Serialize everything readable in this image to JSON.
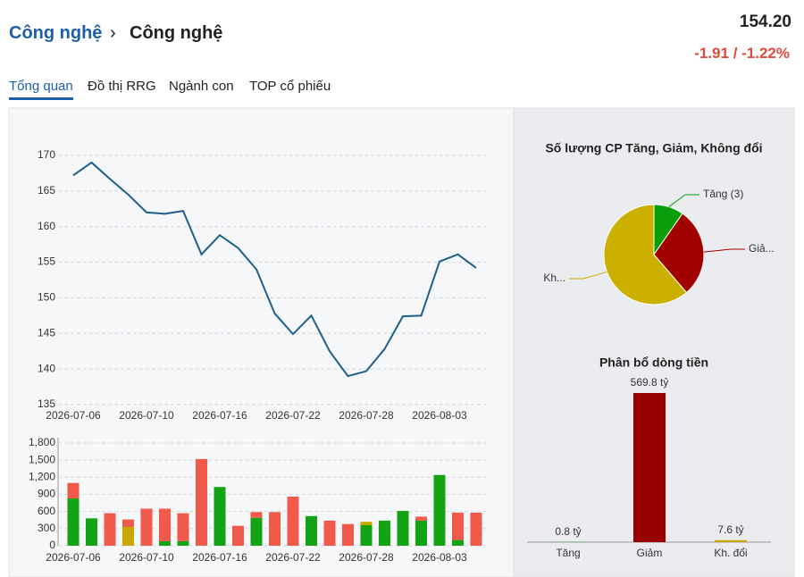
{
  "header": {
    "breadcrumb": [
      "Công nghệ",
      "Công nghệ"
    ],
    "price": "154.20",
    "change": "-1.91 / -1.22%"
  },
  "tabs": [
    "Tổng quan",
    "Đồ thị RRG",
    "Ngành con",
    "TOP cổ phiếu"
  ],
  "chart_data": [
    {
      "type": "line",
      "categories": [
        "2026-07-06",
        null,
        null,
        null,
        "2026-07-10",
        null,
        null,
        null,
        "2026-07-16",
        null,
        null,
        null,
        "2026-07-22",
        null,
        null,
        null,
        "2026-07-28",
        null,
        null,
        null,
        "2026-08-03",
        null,
        null
      ],
      "values": [
        167.2,
        169,
        166.7,
        164.5,
        162,
        161.8,
        162.2,
        156.1,
        158.8,
        157,
        154,
        147.8,
        144.9,
        147.5,
        142.5,
        139,
        139.7,
        142.8,
        147.4,
        147.5,
        155.1,
        156.1,
        154.2
      ],
      "color": "#1f5f8b",
      "ylim": [
        135,
        171
      ],
      "yticks": [
        135,
        140,
        145,
        150,
        155,
        160,
        165,
        170
      ],
      "grid": true
    },
    {
      "type": "stacked_bar",
      "categories": [
        "2026-07-06",
        null,
        null,
        null,
        "2026-07-10",
        null,
        null,
        null,
        "2026-07-16",
        null,
        null,
        null,
        "2026-07-22",
        null,
        null,
        null,
        "2026-07-28",
        null,
        null,
        null,
        "2026-08-03",
        null,
        null
      ],
      "series": [
        {
          "color": "#14a314",
          "values": [
            830,
            480,
            0,
            0,
            0,
            80,
            80,
            0,
            1030,
            0,
            490,
            0,
            0,
            520,
            0,
            0,
            360,
            440,
            610,
            440,
            1240,
            100,
            0
          ]
        },
        {
          "color": "#c9a800",
          "values": [
            0,
            0,
            0,
            330,
            0,
            0,
            0,
            0,
            0,
            0,
            0,
            0,
            0,
            0,
            0,
            0,
            60,
            0,
            0,
            0,
            0,
            0,
            0
          ]
        },
        {
          "color": "#ef5a4b",
          "values": [
            270,
            0,
            570,
            130,
            650,
            570,
            490,
            1520,
            0,
            350,
            100,
            590,
            860,
            0,
            440,
            380,
            0,
            0,
            0,
            70,
            0,
            480,
            580
          ]
        }
      ],
      "ylim": [
        0,
        1800
      ],
      "yticks": [
        0,
        300,
        600,
        900,
        {
          "value": 1200,
          "label": "1,200"
        },
        {
          "value": 1500,
          "label": "1,500"
        },
        {
          "value": 1800,
          "label": "1,800"
        }
      ],
      "grid": true
    },
    {
      "type": "pie",
      "title": "Số lượng CP Tăng, Giảm, Không đổi",
      "categories": [
        "Tăng (3)",
        "Giả...",
        "Kh..."
      ],
      "values": [
        3,
        9,
        19
      ],
      "colors": [
        "#0a9e0a",
        "#a00000",
        "#cbb000"
      ]
    },
    {
      "type": "bar",
      "title": "Phân bổ dòng tiền",
      "categories": [
        "Tăng",
        "Giảm",
        "Kh. đổi"
      ],
      "values": [
        0.8,
        569.8,
        7.6
      ],
      "value_labels": [
        "0.8 tỷ",
        "569.8 tỷ",
        "7.6 tỷ"
      ],
      "colors": [
        "#0a9e0a",
        "#990000",
        "#c9a800"
      ]
    }
  ]
}
